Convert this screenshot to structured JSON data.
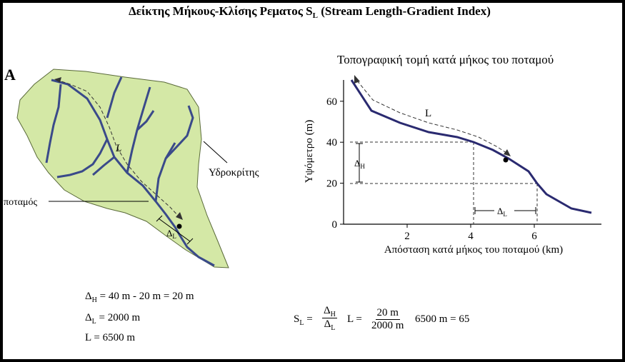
{
  "title": {
    "main": "Δείκτης Μήκους-Κλίσης Ρεματος S",
    "subscript": "L",
    "suffix": " (Stream Length-Gradient Index)"
  },
  "panel_a": {
    "label": "A"
  },
  "map": {
    "river_label": "ποταμός",
    "divide_label": "Υδροκρίτης",
    "L_label": "L",
    "delta_label": "Δ",
    "delta_sub": "L"
  },
  "profile": {
    "title": "Τοπογραφική τομή κατά μήκος του ποταμού",
    "ylabel": "Υψόμετρο (m)",
    "xlabel": "Απόσταση κατά μήκος του ποταμού (km)",
    "yticks": [
      "0",
      "20",
      "40",
      "60"
    ],
    "xticks": [
      "2",
      "4",
      "6"
    ],
    "L_label": "L",
    "dh_label": "Δ",
    "dh_sub": "H",
    "dl_label": "Δ",
    "dl_sub": "L"
  },
  "equations": {
    "dh": {
      "sym": "Δ",
      "sub": "H",
      "rest": " = 40 m - 20 m = 20 m"
    },
    "dl": {
      "sym": "Δ",
      "sub": "L",
      "rest": " = 2000 m"
    },
    "l": {
      "text": "L = 6500 m"
    },
    "sl": {
      "lhs_sym": "S",
      "lhs_sub": "L",
      "eq1": " =",
      "f1_num": "Δ",
      "f1_num_sub": "H",
      "f1_den": "Δ",
      "f1_den_sub": "L",
      "mid": "L  =",
      "f2_num": "20 m",
      "f2_den": "2000 m",
      "rhs": "6500 m = 65"
    }
  },
  "colors": {
    "basin_fill": "#d4e8a6",
    "basin_stroke": "#5a6a3a",
    "river": "#3a4a8a",
    "profile_line": "#2a2a70"
  }
}
